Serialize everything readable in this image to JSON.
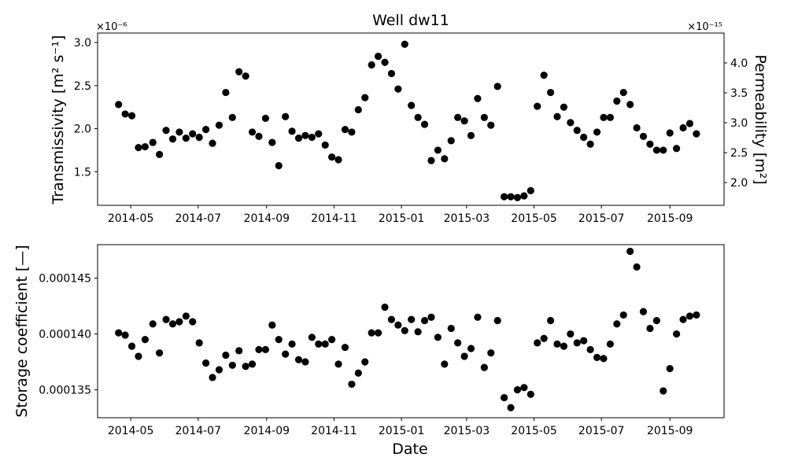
{
  "chart_data": [
    {
      "type": "scatter",
      "title": "Well dw11",
      "xlabel": "",
      "ylabel": "Transmissivity [m² s⁻¹]",
      "ylabel_right": "Permeability [m²]",
      "y_exponent_label": "×10⁻⁶",
      "y2_exponent_label": "×10⁻¹⁵",
      "xlim": [
        "2014-04-01",
        "2015-10-20"
      ],
      "ylim": [
        1.11,
        3.11
      ],
      "y2lim": [
        1.62,
        4.5
      ],
      "x_ticks": [
        "2014-05",
        "2014-07",
        "2014-09",
        "2014-11",
        "2015-01",
        "2015-03",
        "2015-05",
        "2015-07",
        "2015-09"
      ],
      "y_ticks": [
        "1.5",
        "2.0",
        "2.5",
        "3.0"
      ],
      "y2_ticks": [
        "2.0",
        "2.5",
        "3.0",
        "3.5",
        "4.0"
      ],
      "marker_color": "#000000",
      "points": [
        [
          "2014-04-20",
          2.28
        ],
        [
          "2014-04-26",
          2.17
        ],
        [
          "2014-05-02",
          2.15
        ],
        [
          "2014-05-08",
          1.78
        ],
        [
          "2014-05-14",
          1.79
        ],
        [
          "2014-05-21",
          1.84
        ],
        [
          "2014-05-27",
          1.7
        ],
        [
          "2014-06-02",
          1.98
        ],
        [
          "2014-06-08",
          1.88
        ],
        [
          "2014-06-14",
          1.96
        ],
        [
          "2014-06-20",
          1.89
        ],
        [
          "2014-06-26",
          1.94
        ],
        [
          "2014-07-02",
          1.9
        ],
        [
          "2014-07-08",
          1.99
        ],
        [
          "2014-07-14",
          1.83
        ],
        [
          "2014-07-20",
          2.04
        ],
        [
          "2014-07-26",
          2.42
        ],
        [
          "2014-08-01",
          2.13
        ],
        [
          "2014-08-07",
          2.66
        ],
        [
          "2014-08-13",
          2.61
        ],
        [
          "2014-08-19",
          1.96
        ],
        [
          "2014-08-25",
          1.91
        ],
        [
          "2014-08-31",
          2.12
        ],
        [
          "2014-09-06",
          1.84
        ],
        [
          "2014-09-12",
          1.57
        ],
        [
          "2014-09-18",
          2.14
        ],
        [
          "2014-09-24",
          1.97
        ],
        [
          "2014-09-30",
          1.89
        ],
        [
          "2014-10-06",
          1.92
        ],
        [
          "2014-10-12",
          1.9
        ],
        [
          "2014-10-18",
          1.94
        ],
        [
          "2014-10-24",
          1.81
        ],
        [
          "2014-10-30",
          1.67
        ],
        [
          "2014-11-05",
          1.64
        ],
        [
          "2014-11-11",
          1.99
        ],
        [
          "2014-11-17",
          1.96
        ],
        [
          "2014-11-23",
          2.22
        ],
        [
          "2014-11-29",
          2.36
        ],
        [
          "2014-12-05",
          2.74
        ],
        [
          "2014-12-11",
          2.84
        ],
        [
          "2014-12-17",
          2.77
        ],
        [
          "2014-12-23",
          2.64
        ],
        [
          "2014-12-29",
          2.46
        ],
        [
          "2015-01-04",
          2.98
        ],
        [
          "2015-01-10",
          2.27
        ],
        [
          "2015-01-16",
          2.13
        ],
        [
          "2015-01-22",
          2.05
        ],
        [
          "2015-01-28",
          1.63
        ],
        [
          "2015-02-03",
          1.75
        ],
        [
          "2015-02-09",
          1.65
        ],
        [
          "2015-02-15",
          1.86
        ],
        [
          "2015-02-21",
          2.13
        ],
        [
          "2015-02-27",
          2.09
        ],
        [
          "2015-03-05",
          1.92
        ],
        [
          "2015-03-11",
          2.35
        ],
        [
          "2015-03-17",
          2.13
        ],
        [
          "2015-03-23",
          2.04
        ],
        [
          "2015-03-29",
          2.49
        ],
        [
          "2015-04-04",
          1.21
        ],
        [
          "2015-04-10",
          1.21
        ],
        [
          "2015-04-16",
          1.2
        ],
        [
          "2015-04-22",
          1.22
        ],
        [
          "2015-04-28",
          1.28
        ],
        [
          "2015-05-04",
          2.26
        ],
        [
          "2015-05-10",
          2.62
        ],
        [
          "2015-05-16",
          2.42
        ],
        [
          "2015-05-22",
          2.14
        ],
        [
          "2015-05-28",
          2.25
        ],
        [
          "2015-06-03",
          2.07
        ],
        [
          "2015-06-09",
          1.98
        ],
        [
          "2015-06-15",
          1.9
        ],
        [
          "2015-06-21",
          1.82
        ],
        [
          "2015-06-27",
          1.96
        ],
        [
          "2015-07-03",
          2.13
        ],
        [
          "2015-07-09",
          2.13
        ],
        [
          "2015-07-15",
          2.32
        ],
        [
          "2015-07-21",
          2.42
        ],
        [
          "2015-07-27",
          2.28
        ],
        [
          "2015-08-02",
          2.01
        ],
        [
          "2015-08-08",
          1.91
        ],
        [
          "2015-08-14",
          1.82
        ],
        [
          "2015-08-20",
          1.75
        ],
        [
          "2015-08-26",
          1.75
        ],
        [
          "2015-09-01",
          1.95
        ],
        [
          "2015-09-07",
          1.77
        ],
        [
          "2015-09-13",
          2.01
        ],
        [
          "2015-09-19",
          2.06
        ],
        [
          "2015-09-25",
          1.94
        ]
      ]
    },
    {
      "type": "scatter",
      "title": "",
      "xlabel": "Date",
      "ylabel": "Storage coefficient [—]",
      "xlim": [
        "2014-04-01",
        "2015-10-20"
      ],
      "ylim": [
        0.0001325,
        0.000148
      ],
      "x_ticks": [
        "2014-05",
        "2014-07",
        "2014-09",
        "2014-11",
        "2015-01",
        "2015-03",
        "2015-05",
        "2015-07",
        "2015-09"
      ],
      "y_ticks": [
        "0.000135",
        "0.000140",
        "0.000145"
      ],
      "marker_color": "#000000",
      "points": [
        [
          "2014-04-20",
          0.0001401
        ],
        [
          "2014-04-26",
          0.0001399
        ],
        [
          "2014-05-02",
          0.0001389
        ],
        [
          "2014-05-08",
          0.000138
        ],
        [
          "2014-05-14",
          0.0001395
        ],
        [
          "2014-05-21",
          0.0001409
        ],
        [
          "2014-05-27",
          0.0001383
        ],
        [
          "2014-06-02",
          0.0001413
        ],
        [
          "2014-06-08",
          0.0001409
        ],
        [
          "2014-06-14",
          0.0001411
        ],
        [
          "2014-06-20",
          0.0001416
        ],
        [
          "2014-06-26",
          0.0001411
        ],
        [
          "2014-07-02",
          0.0001392
        ],
        [
          "2014-07-08",
          0.0001374
        ],
        [
          "2014-07-14",
          0.0001361
        ],
        [
          "2014-07-20",
          0.0001368
        ],
        [
          "2014-07-26",
          0.0001381
        ],
        [
          "2014-08-01",
          0.0001372
        ],
        [
          "2014-08-07",
          0.0001385
        ],
        [
          "2014-08-13",
          0.0001371
        ],
        [
          "2014-08-19",
          0.0001373
        ],
        [
          "2014-08-25",
          0.0001386
        ],
        [
          "2014-08-31",
          0.0001386
        ],
        [
          "2014-09-06",
          0.0001408
        ],
        [
          "2014-09-12",
          0.0001395
        ],
        [
          "2014-09-18",
          0.0001382
        ],
        [
          "2014-09-24",
          0.0001391
        ],
        [
          "2014-09-30",
          0.0001377
        ],
        [
          "2014-10-06",
          0.0001375
        ],
        [
          "2014-10-12",
          0.0001397
        ],
        [
          "2014-10-18",
          0.0001391
        ],
        [
          "2014-10-24",
          0.0001391
        ],
        [
          "2014-10-30",
          0.0001395
        ],
        [
          "2014-11-05",
          0.0001373
        ],
        [
          "2014-11-11",
          0.0001388
        ],
        [
          "2014-11-17",
          0.0001355
        ],
        [
          "2014-11-23",
          0.0001365
        ],
        [
          "2014-11-29",
          0.0001375
        ],
        [
          "2014-12-05",
          0.0001401
        ],
        [
          "2014-12-11",
          0.0001401
        ],
        [
          "2014-12-17",
          0.0001424
        ],
        [
          "2014-12-23",
          0.0001413
        ],
        [
          "2014-12-29",
          0.0001408
        ],
        [
          "2015-01-04",
          0.0001403
        ],
        [
          "2015-01-10",
          0.0001413
        ],
        [
          "2015-01-16",
          0.0001402
        ],
        [
          "2015-01-22",
          0.0001412
        ],
        [
          "2015-01-28",
          0.0001415
        ],
        [
          "2015-02-03",
          0.0001397
        ],
        [
          "2015-02-09",
          0.0001373
        ],
        [
          "2015-02-15",
          0.0001405
        ],
        [
          "2015-02-21",
          0.0001392
        ],
        [
          "2015-02-27",
          0.000138
        ],
        [
          "2015-03-05",
          0.0001387
        ],
        [
          "2015-03-11",
          0.0001415
        ],
        [
          "2015-03-17",
          0.000137
        ],
        [
          "2015-03-23",
          0.0001383
        ],
        [
          "2015-03-29",
          0.0001412
        ],
        [
          "2015-04-04",
          0.0001343
        ],
        [
          "2015-04-10",
          0.0001334
        ],
        [
          "2015-04-16",
          0.000135
        ],
        [
          "2015-04-22",
          0.0001352
        ],
        [
          "2015-04-28",
          0.0001346
        ],
        [
          "2015-05-04",
          0.0001392
        ],
        [
          "2015-05-10",
          0.0001396
        ],
        [
          "2015-05-16",
          0.0001412
        ],
        [
          "2015-05-22",
          0.0001391
        ],
        [
          "2015-05-28",
          0.0001389
        ],
        [
          "2015-06-03",
          0.00014
        ],
        [
          "2015-06-09",
          0.0001392
        ],
        [
          "2015-06-15",
          0.0001394
        ],
        [
          "2015-06-21",
          0.0001386
        ],
        [
          "2015-06-27",
          0.0001379
        ],
        [
          "2015-07-03",
          0.0001378
        ],
        [
          "2015-07-09",
          0.0001391
        ],
        [
          "2015-07-15",
          0.0001409
        ],
        [
          "2015-07-21",
          0.0001417
        ],
        [
          "2015-07-27",
          0.0001474
        ],
        [
          "2015-08-02",
          0.000146
        ],
        [
          "2015-08-08",
          0.000142
        ],
        [
          "2015-08-14",
          0.0001405
        ],
        [
          "2015-08-20",
          0.0001412
        ],
        [
          "2015-08-26",
          0.0001349
        ],
        [
          "2015-09-01",
          0.0001369
        ],
        [
          "2015-09-07",
          0.00014
        ],
        [
          "2015-09-13",
          0.0001413
        ],
        [
          "2015-09-19",
          0.0001416
        ],
        [
          "2015-09-25",
          0.0001417
        ]
      ]
    }
  ]
}
